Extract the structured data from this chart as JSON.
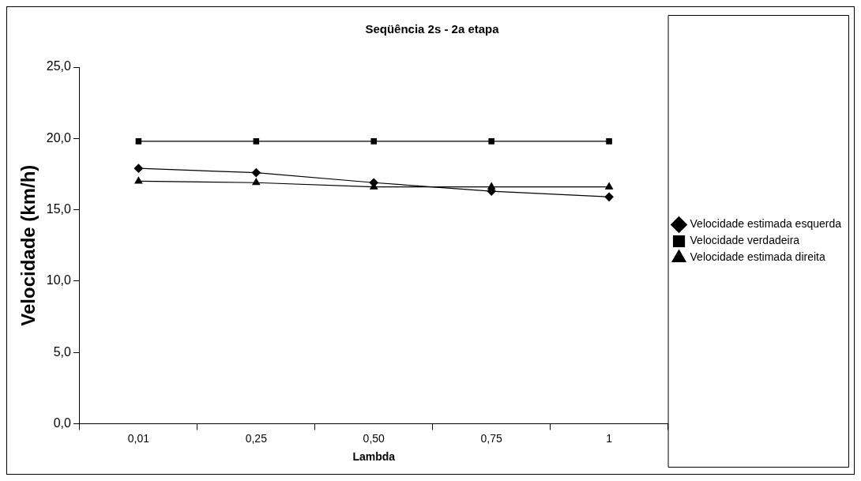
{
  "chart_data": {
    "type": "line",
    "title": "Seqüência 2s - 2a etapa",
    "xlabel": "Lambda",
    "ylabel": "Velocidade (km/h)",
    "categories": [
      "0,01",
      "0,25",
      "0,50",
      "0,75",
      "1"
    ],
    "series": [
      {
        "name": "Velocidade estimada esquerda",
        "color": "#000000",
        "marker": "diamond",
        "values": [
          17.9,
          17.6,
          16.9,
          16.3,
          15.9
        ]
      },
      {
        "name": "Velocidade verdadeira",
        "color": "#000000",
        "marker": "square",
        "values": [
          19.8,
          19.8,
          19.8,
          19.8,
          19.8
        ]
      },
      {
        "name": "Velocidade estimada direita",
        "color": "#000000",
        "marker": "triangle",
        "values": [
          17.0,
          16.9,
          16.6,
          16.6,
          16.6
        ]
      }
    ],
    "ylim": [
      0,
      25
    ],
    "yticks": [
      {
        "value": 0,
        "label": "0,0"
      },
      {
        "value": 5,
        "label": "5,0"
      },
      {
        "value": 10,
        "label": "10,0"
      },
      {
        "value": 15,
        "label": "15,0"
      },
      {
        "value": 20,
        "label": "20,0"
      },
      {
        "value": 25,
        "label": "25,0"
      }
    ],
    "grid": false,
    "legend": "right",
    "line_style": "solid"
  }
}
